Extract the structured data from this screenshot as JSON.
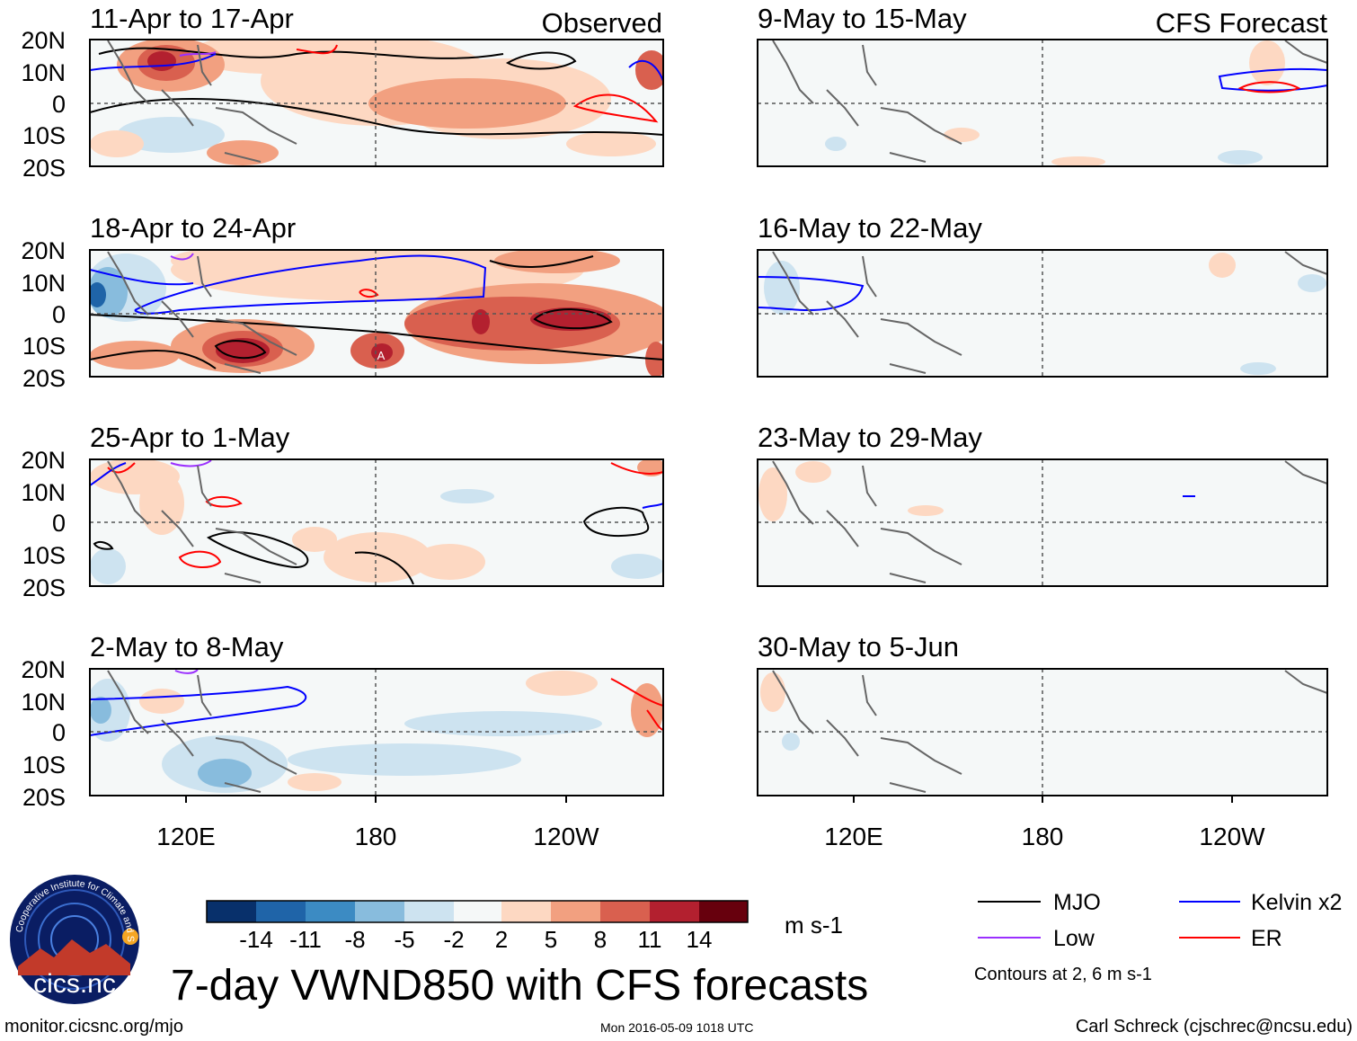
{
  "figure": {
    "title": "7-day VWND850 with CFS forecasts",
    "source_url": "monitor.cicsnc.org/mjo",
    "timestamp": "Mon 2016-05-09 1018 UTC",
    "author": "Carl Schreck (cjschrec@ncsu.edu)",
    "logo_text": "cics.nc",
    "logo_ring_text": "Cooperative Institute for Climate and Satellites"
  },
  "chart_data": {
    "type": "heatmap",
    "variable": "850-hPa meridional wind anomaly",
    "columns": [
      {
        "header": "Observed",
        "panels": [
          {
            "title": "11-Apr to 17-Apr"
          },
          {
            "title": "18-Apr to 24-Apr"
          },
          {
            "title": "25-Apr to 1-May"
          },
          {
            "title": "2-May to 8-May"
          }
        ]
      },
      {
        "header": "CFS Forecast",
        "panels": [
          {
            "title": "9-May to 15-May"
          },
          {
            "title": "16-May to 22-May"
          },
          {
            "title": "23-May to 29-May"
          },
          {
            "title": "30-May to 5-Jun"
          }
        ]
      }
    ],
    "y_tick_labels": [
      "20N",
      "10N",
      "0",
      "10S",
      "20S"
    ],
    "x_tick_labels": [
      "120E",
      "180",
      "120W"
    ],
    "ylim": [
      -20,
      20
    ],
    "colorbar": {
      "labels": [
        "-14",
        "-11",
        "-8",
        "-5",
        "-2",
        "2",
        "5",
        "8",
        "11",
        "14"
      ],
      "colors": [
        "#08306b",
        "#1f64a8",
        "#3c8bc3",
        "#88bcdd",
        "#cde3f0",
        "#f5f8f8",
        "#fdd8c2",
        "#f2a080",
        "#d9604f",
        "#b3202f",
        "#67000d"
      ],
      "units": "m s-1"
    },
    "legend": [
      {
        "label": "MJO",
        "color": "#000000"
      },
      {
        "label": "Kelvin x2",
        "color": "#0000ff"
      },
      {
        "label": "Low",
        "color": "#9b30ff"
      },
      {
        "label": "ER",
        "color": "#ff0000"
      }
    ],
    "contour_note": "Contours at 2, 6 m s-1",
    "annotations": [
      "A"
    ]
  }
}
